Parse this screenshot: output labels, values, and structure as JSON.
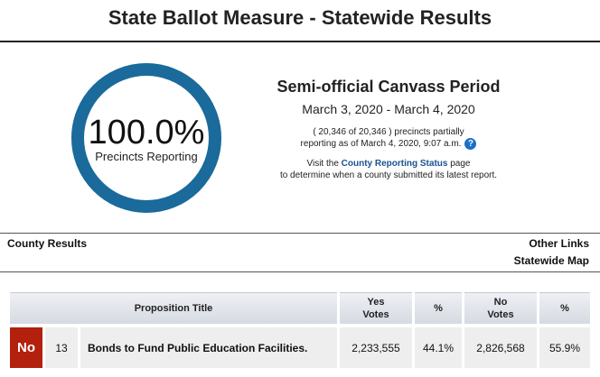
{
  "header": {
    "title": "State Ballot Measure - Statewide Results"
  },
  "reporting": {
    "percent_text": "100.0%",
    "percent_value": 100.0,
    "label": "Precincts Reporting",
    "ring_color": "#1a6a9b"
  },
  "canvass": {
    "title": "Semi-official Canvass Period",
    "dates": "March 3, 2020 - March 4, 2020",
    "precincts_line1": "( 20,346 of 20,346 ) precincts partially",
    "precincts_line2": "reporting as of March 4, 2020, 9:07 a.m.",
    "help_icon": "?",
    "visit_prefix": "Visit the ",
    "visit_link": "County Reporting Status",
    "visit_suffix": " page",
    "visit_line2": "to determine when a county submitted its latest report."
  },
  "links": {
    "county_results": "County Results",
    "other_links": "Other Links",
    "statewide_map": "Statewide Map"
  },
  "table": {
    "headers": {
      "title": "Proposition Title",
      "yes1": "Yes",
      "yes2": "Votes",
      "pct_yes": "%",
      "no1": "No",
      "no2": "Votes",
      "pct_no": "%"
    },
    "rows": [
      {
        "result": "No",
        "number": "13",
        "title": "Bonds to Fund Public Education Facilities.",
        "yes_votes": "2,233,555",
        "yes_pct": "44.1%",
        "no_votes": "2,826,568",
        "no_pct": "55.9%"
      }
    ],
    "colors": {
      "result_no": "#b3200e",
      "header_bg": "#d6dae2"
    }
  }
}
